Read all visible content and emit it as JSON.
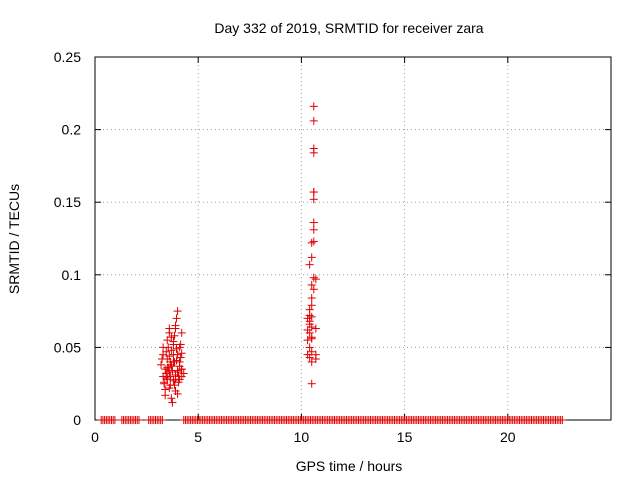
{
  "chart_data": {
    "type": "scatter",
    "title": "Day 332 of 2019, SRMTID for receiver zara",
    "xlabel": "GPS time / hours",
    "ylabel": "SRMTID / TECUs",
    "xlim": [
      0,
      25
    ],
    "ylim": [
      0,
      0.25
    ],
    "xticks": [
      0,
      5,
      10,
      15,
      20
    ],
    "yticks": [
      0,
      0.05,
      0.1,
      0.15,
      0.2,
      0.25
    ],
    "xtick_labels": [
      "0",
      "5",
      "10",
      "15",
      "20"
    ],
    "ytick_labels": [
      "0",
      "0.05",
      "0.1",
      "0.15",
      "0.2",
      "0.25"
    ],
    "grid": true,
    "marker": "+",
    "color": "#e00000",
    "series": [
      {
        "name": "SRMTID",
        "zero_baseline_ranges": [
          [
            0.3,
            1.0
          ],
          [
            1.3,
            2.2
          ],
          [
            2.6,
            3.3
          ],
          [
            4.3,
            22.7
          ]
        ],
        "cluster_a": {
          "x": [
            3.2,
            3.3,
            3.3,
            3.4,
            3.4,
            3.5,
            3.5,
            3.5,
            3.6,
            3.6,
            3.6,
            3.7,
            3.7,
            3.7,
            3.8,
            3.8,
            3.8,
            3.9,
            3.9,
            3.9,
            4.0,
            4.0,
            4.0,
            4.1,
            4.1,
            4.1,
            4.2,
            4.2,
            4.2,
            4.3,
            3.25,
            3.35,
            3.45,
            3.55,
            3.65,
            3.75,
            3.85,
            3.95,
            4.05,
            4.15,
            3.3,
            3.5,
            3.7,
            3.9,
            4.1,
            3.4,
            3.6,
            3.8,
            4.0,
            4.2,
            3.45,
            3.65,
            3.85,
            3.55,
            3.75,
            3.95,
            4.15,
            3.35,
            3.5,
            3.8,
            4.0,
            3.6,
            3.9,
            4.2,
            3.7,
            3.45,
            3.85,
            4.05,
            3.65,
            3.95
          ],
          "y": [
            0.038,
            0.03,
            0.045,
            0.017,
            0.035,
            0.055,
            0.028,
            0.042,
            0.06,
            0.033,
            0.022,
            0.048,
            0.037,
            0.015,
            0.052,
            0.027,
            0.04,
            0.063,
            0.031,
            0.02,
            0.075,
            0.045,
            0.034,
            0.05,
            0.028,
            0.04,
            0.06,
            0.035,
            0.03,
            0.032,
            0.042,
            0.025,
            0.047,
            0.036,
            0.03,
            0.012,
            0.058,
            0.07,
            0.026,
            0.043,
            0.05,
            0.029,
            0.038,
            0.065,
            0.037,
            0.021,
            0.044,
            0.054,
            0.018,
            0.046,
            0.032,
            0.04,
            0.024,
            0.05,
            0.034,
            0.041,
            0.052,
            0.026,
            0.036,
            0.045,
            0.033,
            0.063,
            0.028,
            0.035,
            0.057,
            0.03,
            0.04,
            0.03,
            0.024,
            0.049
          ]
        },
        "cluster_b": {
          "x": [
            10.3,
            10.3,
            10.3,
            10.4,
            10.4,
            10.4,
            10.4,
            10.4,
            10.5,
            10.5,
            10.5,
            10.5,
            10.5,
            10.5,
            10.6,
            10.6,
            10.6,
            10.6,
            10.6,
            10.6,
            10.6,
            10.6,
            10.7,
            10.7,
            10.7,
            10.5,
            10.5,
            10.4,
            10.5,
            10.6,
            10.3,
            10.4,
            10.5,
            10.6,
            10.5,
            10.6,
            10.4,
            10.5,
            10.6,
            10.7
          ],
          "y": [
            0.045,
            0.055,
            0.07,
            0.043,
            0.06,
            0.076,
            0.066,
            0.05,
            0.084,
            0.093,
            0.071,
            0.064,
            0.057,
            0.025,
            0.216,
            0.206,
            0.187,
            0.184,
            0.157,
            0.152,
            0.136,
            0.131,
            0.097,
            0.063,
            0.042,
            0.122,
            0.112,
            0.107,
            0.079,
            0.09,
            0.062,
            0.072,
            0.047,
            0.098,
            0.04,
            0.123,
            0.068,
            0.056,
            0.157,
            0.045
          ]
        }
      }
    ]
  }
}
